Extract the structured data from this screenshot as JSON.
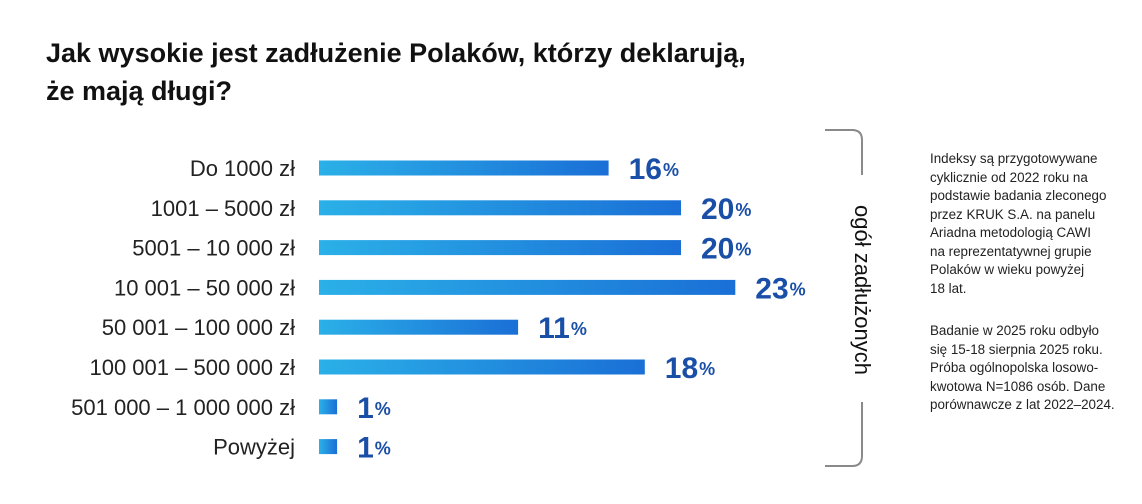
{
  "title": {
    "line1": "Jak wysokie jest zadłużenie Polaków, którzy deklarują,",
    "line2": "że mają długi?"
  },
  "chart_data": {
    "type": "bar",
    "orientation": "horizontal",
    "title": "Jak wysokie jest zadłużenie Polaków, którzy deklarują, że mają długi?",
    "categories": [
      "Do 1000 zł",
      "1001 – 5000 zł",
      "5001 – 10 000 zł",
      "10 001 – 50 000 zł",
      "50 001 – 100 000 zł",
      "100 001 – 500 000 zł",
      "501 000 – 1 000 000 zł",
      "Powyżej"
    ],
    "values": [
      16,
      20,
      20,
      23,
      11,
      18,
      1,
      1
    ],
    "value_suffix": "%",
    "xlim": [
      0,
      25
    ],
    "grid": false,
    "bar_color_start": "#2bb0e8",
    "bar_color_end": "#1a6fd6",
    "value_label_color": "#1a4fa8",
    "group_label": "ogół zadłużonych"
  },
  "notes": {
    "p1": [
      "Indeksy są przygotowywane",
      "cyklicznie od 2022 roku na",
      "podstawie badania zleconego",
      "przez KRUK S.A. na panelu",
      "Ariadna metodologią CAWI",
      "na reprezentatywnej grupie",
      "Polaków w wieku powyżej",
      "18 lat."
    ],
    "p2": [
      "Badanie w 2025 roku odbyło",
      "się 15-18 sierpnia 2025 roku.",
      "Próba ogólnopolska losowo-",
      "kwotowa N=1086 osób. Dane",
      "porównawcze z lat 2022–2024."
    ]
  }
}
